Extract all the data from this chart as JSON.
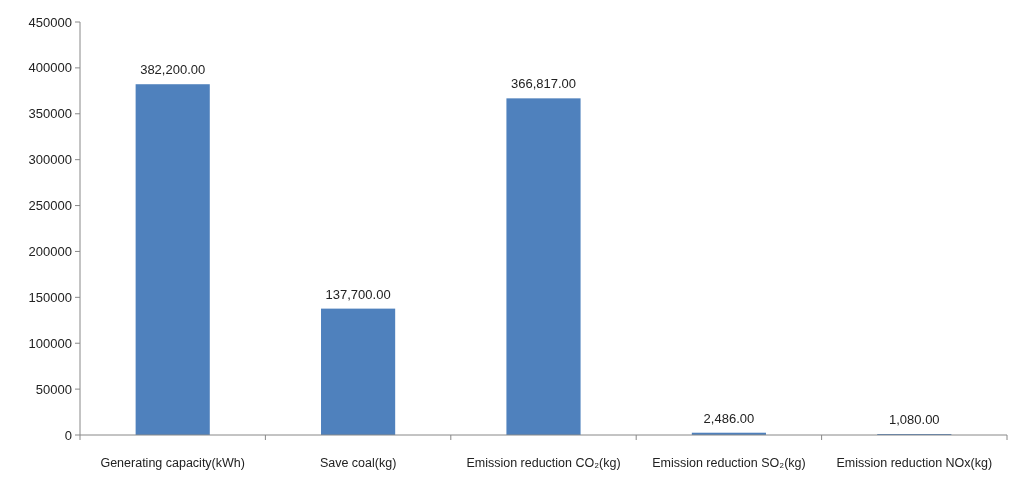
{
  "chart_data": {
    "type": "bar",
    "categories": [
      "Generating capacity(kWh)",
      "Save coal(kg)",
      "Emission reduction CO₂(kg)",
      "Emission reduction SO₂(kg)",
      "Emission reduction NOx(kg)"
    ],
    "values": [
      382200,
      137700,
      366817,
      2486,
      1080
    ],
    "value_labels": [
      "382,200.00",
      "137,700.00",
      "366,817.00",
      "2,486.00",
      "1,080.00"
    ],
    "color": "#4f81bd",
    "ylim": [
      0,
      450000
    ],
    "yticks": [
      0,
      50000,
      100000,
      150000,
      200000,
      250000,
      300000,
      350000,
      400000,
      450000
    ],
    "grid": false
  }
}
